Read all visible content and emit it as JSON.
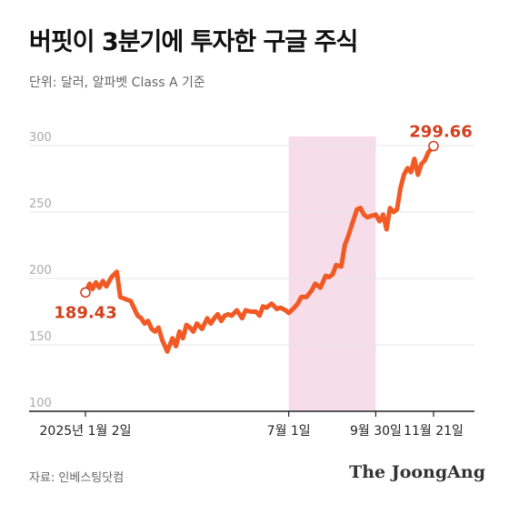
{
  "header": {
    "title": "버핏이 3분기에 투자한 구글 주식",
    "subtitle": "단위: 달러, 알파벳 Class A 기준"
  },
  "footer": {
    "source": "자료: 인베스팅닷컴",
    "brand": "The JoongAng"
  },
  "colors": {
    "line": "#f15a24",
    "highlight": "#f6dde9",
    "label": "#d3401e",
    "grid": "#e6e6e6",
    "tick": "#aaaaaa"
  },
  "chart_data": {
    "type": "line",
    "title": "버핏이 3분기에 투자한 구글 주식",
    "subtitle": "단위: 달러, 알파벳 Class A 기준",
    "ylim": [
      100,
      300
    ],
    "yticks": [
      100,
      150,
      200,
      250,
      300
    ],
    "grid": true,
    "x_tick_labels": [
      {
        "x": 0,
        "label": "2025년 1월 2일"
      },
      {
        "x": 0.584,
        "label": "7월 1일"
      },
      {
        "x": 0.834,
        "label": "9월 30일"
      },
      {
        "x": 1,
        "label": "11월 21일"
      }
    ],
    "highlight_range": [
      0.584,
      0.834
    ],
    "annotations": [
      {
        "x": 0,
        "y": 189.43,
        "label": "189.43"
      },
      {
        "x": 1,
        "y": 299.66,
        "label": "299.66"
      }
    ],
    "series": [
      {
        "x": [
          0,
          0.012,
          0.02,
          0.03,
          0.04,
          0.05,
          0.06,
          0.075,
          0.09,
          0.1,
          0.11,
          0.12,
          0.13,
          0.15,
          0.16,
          0.17,
          0.18,
          0.19,
          0.2,
          0.21,
          0.22,
          0.235,
          0.25,
          0.26,
          0.27,
          0.28,
          0.29,
          0.3,
          0.31,
          0.32,
          0.335,
          0.35,
          0.36,
          0.37,
          0.38,
          0.39,
          0.4,
          0.41,
          0.42,
          0.435,
          0.45,
          0.46,
          0.475,
          0.49,
          0.5,
          0.51,
          0.52,
          0.535,
          0.55,
          0.56,
          0.575,
          0.584,
          0.6,
          0.61,
          0.62,
          0.635,
          0.65,
          0.66,
          0.675,
          0.69,
          0.7,
          0.71,
          0.72,
          0.735,
          0.745,
          0.755,
          0.765,
          0.78,
          0.79,
          0.8,
          0.81,
          0.82,
          0.834,
          0.845,
          0.855,
          0.865,
          0.875,
          0.885,
          0.895,
          0.905,
          0.915,
          0.925,
          0.935,
          0.945,
          0.955,
          0.965,
          0.975,
          0.985,
          1
        ],
        "values": [
          189.43,
          196,
          192,
          197,
          193,
          198,
          194,
          201,
          205,
          186,
          185,
          184,
          183,
          172,
          170,
          166,
          168,
          162,
          160,
          163,
          154,
          145,
          155,
          149,
          160,
          155,
          165,
          163,
          160,
          166,
          162,
          170,
          166,
          170,
          173,
          168,
          172,
          173,
          172,
          176,
          170,
          176,
          175,
          175,
          172,
          179,
          178,
          181,
          177,
          178,
          176,
          174,
          178,
          181,
          186,
          186,
          191,
          196,
          193,
          202,
          201,
          203,
          210,
          209,
          225,
          232,
          240,
          252,
          253,
          248,
          246,
          247,
          248,
          243,
          248,
          237,
          253,
          250,
          252,
          268,
          278,
          283,
          280,
          290,
          278,
          286,
          289,
          295,
          299.66
        ]
      }
    ]
  }
}
